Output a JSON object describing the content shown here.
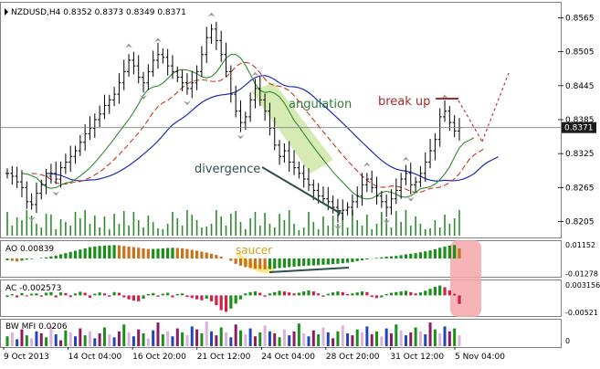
{
  "chart_data": {
    "type": "candlestick",
    "symbol_header": "NZDUSD,H4  0.8352 0.8373 0.8349 0.8371",
    "price_axis_ticks": [
      "0.8565",
      "0.8505",
      "0.8445",
      "0.8385",
      "0.8325",
      "0.8265",
      "0.8205"
    ],
    "price_axis_range": [
      0.818,
      0.859
    ],
    "current_price_label": "0.8371",
    "current_price": 0.8371,
    "time_axis_labels": [
      "9 Oct 2013",
      "14 Oct 04:00",
      "16 Oct 20:00",
      "21 Oct 12:00",
      "24 Oct 04:00",
      "28 Oct 20:00",
      "31 Oct 12:00",
      "5 Nov 04:00"
    ],
    "close_series": [
      0.829,
      0.8285,
      0.8275,
      0.8265,
      0.824,
      0.8235,
      0.8255,
      0.827,
      0.8285,
      0.829,
      0.828,
      0.83,
      0.831,
      0.832,
      0.833,
      0.8345,
      0.836,
      0.837,
      0.8385,
      0.8395,
      0.841,
      0.842,
      0.843,
      0.845,
      0.847,
      0.849,
      0.848,
      0.846,
      0.845,
      0.847,
      0.849,
      0.85,
      0.8495,
      0.848,
      0.847,
      0.846,
      0.845,
      0.844,
      0.845,
      0.847,
      0.85,
      0.853,
      0.8545,
      0.8525,
      0.85,
      0.847,
      0.843,
      0.84,
      0.838,
      0.839,
      0.842,
      0.844,
      0.842,
      0.84,
      0.837,
      0.834,
      0.832,
      0.833,
      0.831,
      0.83,
      0.829,
      0.828,
      0.827,
      0.826,
      0.825,
      0.8245,
      0.824,
      0.823,
      0.822,
      0.8225,
      0.823,
      0.824,
      0.825,
      0.827,
      0.828,
      0.8265,
      0.825,
      0.824,
      0.823,
      0.8245,
      0.826,
      0.828,
      0.829,
      0.827,
      0.8275,
      0.829,
      0.831,
      0.833,
      0.835,
      0.839,
      0.84,
      0.838,
      0.8365,
      0.8371
    ],
    "annotations": {
      "angulation": "angulation",
      "break_up": "break up",
      "divergence": "divergence",
      "saucer": "saucer"
    },
    "panels": {
      "ao": {
        "label": "AO 0.00839",
        "ticks": [
          "0.01152",
          "-0.01278"
        ],
        "range": [
          -0.0145,
          0.013
        ],
        "values": [
          -0.0015,
          -0.002,
          -0.0025,
          -0.0018,
          -0.001,
          -0.0005,
          0.0,
          0.0005,
          0.001,
          0.0018,
          0.0025,
          0.0035,
          0.0045,
          0.0055,
          0.0065,
          0.0075,
          0.0085,
          0.0095,
          0.01,
          0.0105,
          0.0108,
          0.011,
          0.0112,
          0.011,
          0.0105,
          0.01,
          0.0095,
          0.009,
          0.0085,
          0.008,
          0.008,
          0.0082,
          0.0085,
          0.0088,
          0.009,
          0.0088,
          0.0085,
          0.008,
          0.0072,
          0.0065,
          0.0058,
          0.005,
          0.004,
          0.003,
          0.0015,
          0.0,
          -0.002,
          -0.0045,
          -0.006,
          -0.0072,
          -0.008,
          -0.0085,
          -0.0088,
          -0.009,
          -0.0088,
          -0.0085,
          -0.008,
          -0.0076,
          -0.0072,
          -0.0068,
          -0.0065,
          -0.0062,
          -0.006,
          -0.0058,
          -0.0055,
          -0.0052,
          -0.005,
          -0.0047,
          -0.0044,
          -0.004,
          -0.0035,
          -0.003,
          -0.0022,
          -0.0015,
          -0.0008,
          -0.0002,
          0.0005,
          0.001,
          0.0015,
          0.0018,
          0.0022,
          0.0028,
          0.0035,
          0.004,
          0.0045,
          0.0052,
          0.006,
          0.0068,
          0.0078,
          0.009,
          0.01,
          0.0108,
          0.0112,
          0.0084
        ]
      },
      "ac": {
        "label": "AC -0.002573",
        "ticks": [
          "0.003156",
          "-0.00521"
        ],
        "range": [
          -0.006,
          0.004
        ],
        "values": [
          -0.0005,
          0.0004,
          -0.0006,
          0.0007,
          -0.0003,
          0.0005,
          0.0006,
          -0.0004,
          0.0008,
          0.001,
          -0.0006,
          0.0009,
          0.0007,
          -0.0005,
          0.0006,
          0.0011,
          0.0008,
          -0.0007,
          0.0005,
          0.0009,
          0.0006,
          -0.0004,
          0.001,
          0.0008,
          -0.0006,
          -0.0012,
          -0.0016,
          -0.0018,
          -0.001,
          0.0004,
          0.0007,
          -0.0004,
          0.0005,
          0.0008,
          -0.0006,
          0.0004,
          0.0006,
          -0.0005,
          -0.0008,
          -0.0012,
          -0.0015,
          -0.001,
          -0.0018,
          -0.003,
          -0.0045,
          -0.005,
          -0.004,
          -0.0025,
          -0.0012,
          0.0006,
          0.001,
          0.0012,
          0.0008,
          -0.0004,
          0.0006,
          0.001,
          0.0014,
          0.0012,
          0.0009,
          0.0006,
          0.0008,
          0.0012,
          0.0015,
          0.0012,
          0.0006,
          -0.0004,
          0.0005,
          0.0009,
          0.0012,
          0.001,
          0.0004,
          0.0006,
          0.0009,
          0.0012,
          0.001,
          -0.0005,
          -0.0008,
          -0.0006,
          0.0004,
          0.0008,
          0.001,
          0.0012,
          0.0014,
          0.001,
          0.0006,
          0.0009,
          0.0014,
          0.002,
          0.0026,
          0.003,
          0.0025,
          0.0015,
          0.0005,
          -0.0026
        ]
      },
      "bwmfi": {
        "label": "BW MFI 0.0206",
        "ticks": [
          "0"
        ],
        "values": [
          20,
          28,
          14,
          34,
          22,
          16,
          30,
          26,
          18,
          40,
          24,
          12,
          32,
          28,
          20,
          36,
          22,
          30,
          16,
          26,
          38,
          24,
          18,
          30,
          44,
          28,
          20,
          34,
          26,
          16,
          32,
          48,
          24,
          30,
          20,
          36,
          28,
          22,
          40,
          34,
          26,
          50,
          30,
          22,
          38,
          28,
          18,
          44,
          32,
          24,
          36,
          20,
          28,
          42,
          30,
          26,
          18,
          34,
          22,
          30,
          46,
          26,
          20,
          32,
          24,
          38,
          28,
          16,
          30,
          42,
          26,
          22,
          34,
          28,
          40,
          24,
          30,
          20,
          36,
          26,
          44,
          32,
          22,
          28,
          38,
          30,
          24,
          48,
          34,
          26,
          40,
          30,
          36,
          22
        ]
      }
    }
  }
}
